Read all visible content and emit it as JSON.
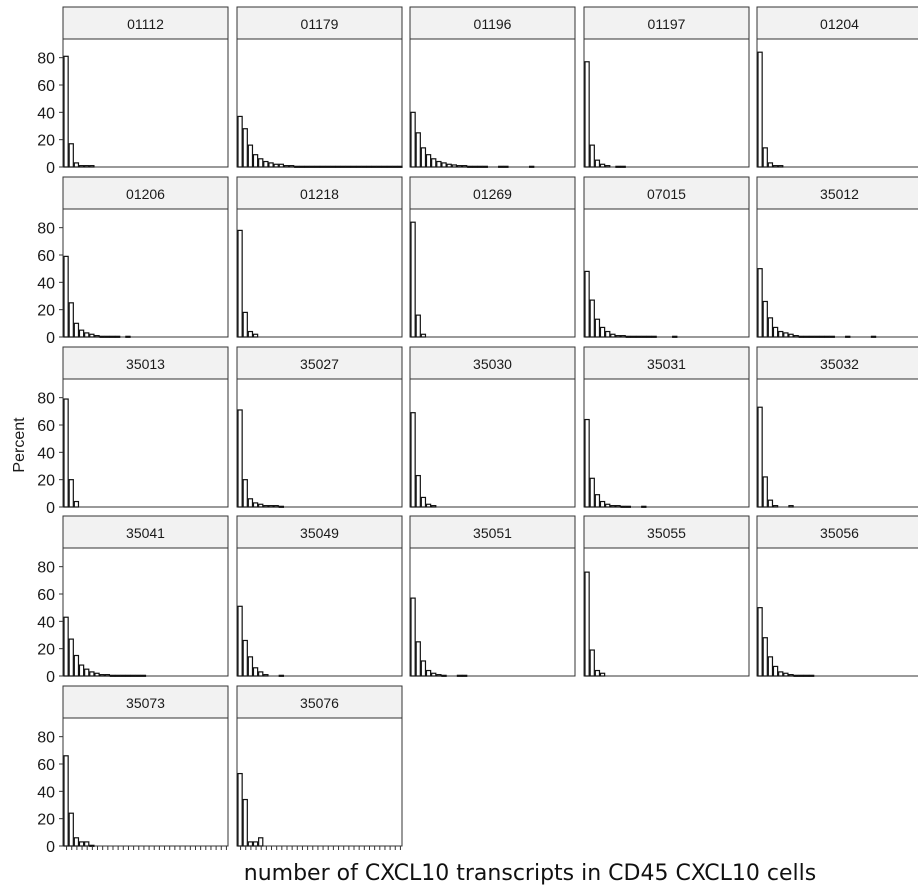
{
  "chart_data": {
    "type": "bar",
    "chart_kind": "faceted histogram",
    "ylabel": "Percent",
    "xlabel": "number of CXCL10 transcripts in CD45 CXCL10 cells",
    "ylim": [
      0,
      90
    ],
    "yticks": [
      0,
      20,
      40,
      60,
      80
    ],
    "grid": false,
    "x_tick_labels_shown": false,
    "bins_per_panel": 32,
    "panels": [
      {
        "label": "01112",
        "values": [
          81,
          17,
          3,
          1,
          1,
          1
        ]
      },
      {
        "label": "01179",
        "values": [
          37,
          28,
          16,
          9,
          6,
          4,
          3,
          2,
          2,
          1,
          1,
          0.5,
          0.5,
          0.5,
          0.5,
          0.5,
          0.5,
          0.5,
          0.5,
          0.5,
          0.5,
          0.5,
          0.5,
          0.5,
          0.5,
          0.5,
          0.5,
          0.5,
          0.5,
          0.5,
          0.5,
          0.5
        ]
      },
      {
        "label": "01196",
        "values": [
          40,
          25,
          14,
          9,
          6,
          4,
          3,
          2,
          1.5,
          1,
          1,
          0.5,
          0.5,
          0.5,
          0.5,
          0,
          0,
          0.5,
          0.5,
          0,
          0,
          0,
          0,
          0.5
        ]
      },
      {
        "label": "01197",
        "values": [
          77,
          16,
          5,
          2,
          1,
          0,
          0.5,
          0.5
        ]
      },
      {
        "label": "01204",
        "values": [
          84,
          14,
          3,
          1,
          1
        ]
      },
      {
        "label": "01206",
        "values": [
          59,
          25,
          10,
          5,
          3,
          2,
          1,
          0.5,
          0.5,
          0.5,
          0.5,
          0,
          0.5
        ]
      },
      {
        "label": "01218",
        "values": [
          78,
          18,
          4,
          2
        ]
      },
      {
        "label": "01269",
        "values": [
          84,
          16,
          2
        ]
      },
      {
        "label": "07015",
        "values": [
          48,
          27,
          13,
          7,
          4,
          2,
          1,
          1,
          0.5,
          0.5,
          0.5,
          0.5,
          0.5,
          0.5,
          0,
          0,
          0,
          0.5
        ]
      },
      {
        "label": "35012",
        "values": [
          50,
          26,
          14,
          7,
          4,
          3,
          2,
          1,
          0.5,
          0.5,
          0.5,
          0.5,
          0.5,
          0.5,
          0.5,
          0,
          0,
          0.5,
          0,
          0,
          0,
          0,
          0.5
        ]
      },
      {
        "label": "35013",
        "values": [
          79,
          20,
          4
        ]
      },
      {
        "label": "35027",
        "values": [
          71,
          20,
          6,
          3,
          2,
          1,
          1,
          1,
          0.5
        ]
      },
      {
        "label": "35030",
        "values": [
          69,
          23,
          7,
          2,
          1
        ]
      },
      {
        "label": "35031",
        "values": [
          64,
          21,
          9,
          4,
          2,
          1,
          1,
          0.5,
          0.5,
          0,
          0,
          0.5
        ]
      },
      {
        "label": "35032",
        "values": [
          73,
          22,
          5,
          1,
          0,
          0,
          1
        ]
      },
      {
        "label": "35041",
        "values": [
          43,
          27,
          15,
          8,
          5,
          3,
          2,
          1,
          1,
          0.5,
          0.5,
          0.5,
          0.5,
          0.5,
          0.5,
          0.5
        ]
      },
      {
        "label": "35049",
        "values": [
          51,
          26,
          14,
          6,
          3,
          1,
          0,
          0,
          0.5
        ]
      },
      {
        "label": "35051",
        "values": [
          57,
          25,
          11,
          4,
          2,
          1,
          0.5,
          0,
          0,
          0.5,
          0.5
        ]
      },
      {
        "label": "35055",
        "values": [
          76,
          19,
          4,
          2
        ]
      },
      {
        "label": "35056",
        "values": [
          50,
          28,
          14,
          7,
          3,
          2,
          1,
          0.5,
          0.5,
          0.5,
          0.5
        ]
      },
      {
        "label": "35073",
        "values": [
          66,
          24,
          6,
          3,
          3,
          0.5
        ]
      },
      {
        "label": "35076",
        "values": [
          53,
          34,
          3,
          3,
          6
        ]
      }
    ]
  }
}
